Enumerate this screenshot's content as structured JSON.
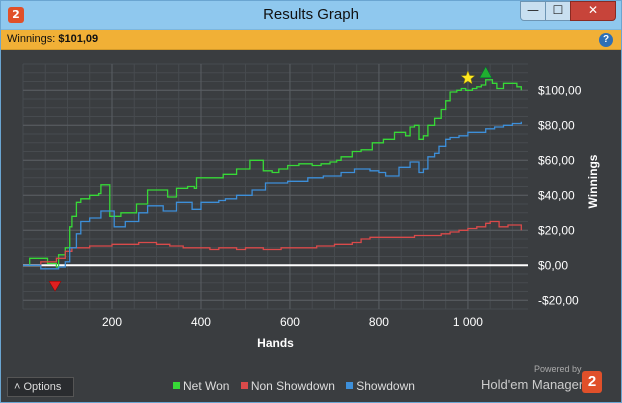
{
  "window": {
    "title": "Results Graph",
    "app_icon": "2",
    "minimize_icon": "—",
    "maximize_icon": "☐",
    "close_icon": "✕"
  },
  "winnings_bar": {
    "label": "Winnings:",
    "value": "$101,09",
    "help_icon": "?"
  },
  "footer": {
    "options_label": "Options",
    "options_icon": "˄",
    "powered_by": "Powered by",
    "brand": "Hold'em Manager",
    "brand_logo": "2"
  },
  "colors": {
    "net_won": "#37d937",
    "non_showdown": "#d94a4a",
    "showdown": "#3d8fd9",
    "zero_line": "#ffffff"
  },
  "chart_data": {
    "type": "line",
    "xlabel": "Hands",
    "ylabel": "Winnings",
    "xlim": [
      0,
      1135
    ],
    "ylim": [
      -25,
      115
    ],
    "x_ticks": [
      200,
      400,
      600,
      800,
      1000
    ],
    "x_tick_labels": [
      "200",
      "400",
      "600",
      "800",
      "1 000"
    ],
    "y_ticks": [
      -20,
      0,
      20,
      40,
      60,
      80,
      100
    ],
    "y_tick_labels": [
      "-$20,00",
      "$0,00",
      "$20,00",
      "$40,00",
      "$60,00",
      "$80,00",
      "$100,00"
    ],
    "grid": true,
    "legend_position": "bottom",
    "series": [
      {
        "name": "Net Won",
        "points": [
          [
            0,
            0
          ],
          [
            15,
            4
          ],
          [
            35,
            4
          ],
          [
            55,
            1
          ],
          [
            75,
            -1
          ],
          [
            80,
            6
          ],
          [
            95,
            10
          ],
          [
            105,
            22
          ],
          [
            110,
            28
          ],
          [
            120,
            36
          ],
          [
            130,
            38
          ],
          [
            145,
            38
          ],
          [
            150,
            40
          ],
          [
            160,
            40
          ],
          [
            170,
            41
          ],
          [
            175,
            46
          ],
          [
            190,
            46
          ],
          [
            195,
            28
          ],
          [
            215,
            28
          ],
          [
            220,
            30
          ],
          [
            250,
            30
          ],
          [
            255,
            35
          ],
          [
            275,
            35
          ],
          [
            280,
            43
          ],
          [
            320,
            43
          ],
          [
            325,
            39
          ],
          [
            340,
            39
          ],
          [
            345,
            44
          ],
          [
            370,
            45
          ],
          [
            385,
            44
          ],
          [
            390,
            50
          ],
          [
            440,
            50
          ],
          [
            450,
            52
          ],
          [
            470,
            52
          ],
          [
            480,
            55
          ],
          [
            500,
            55
          ],
          [
            510,
            60
          ],
          [
            530,
            60
          ],
          [
            540,
            54
          ],
          [
            560,
            53
          ],
          [
            575,
            55
          ],
          [
            590,
            55
          ],
          [
            595,
            57
          ],
          [
            620,
            58
          ],
          [
            640,
            58
          ],
          [
            650,
            57
          ],
          [
            670,
            58
          ],
          [
            690,
            59
          ],
          [
            705,
            60
          ],
          [
            715,
            62
          ],
          [
            730,
            62
          ],
          [
            740,
            65
          ],
          [
            760,
            66
          ],
          [
            775,
            66
          ],
          [
            785,
            70
          ],
          [
            800,
            70
          ],
          [
            810,
            72
          ],
          [
            825,
            72
          ],
          [
            835,
            76
          ],
          [
            850,
            76
          ],
          [
            860,
            74
          ],
          [
            870,
            79
          ],
          [
            880,
            80
          ],
          [
            890,
            72
          ],
          [
            900,
            74
          ],
          [
            910,
            80
          ],
          [
            925,
            84
          ],
          [
            940,
            89
          ],
          [
            950,
            94
          ],
          [
            960,
            99
          ],
          [
            975,
            100
          ],
          [
            985,
            101
          ],
          [
            995,
            100
          ],
          [
            1010,
            101
          ],
          [
            1020,
            102
          ],
          [
            1030,
            103
          ],
          [
            1040,
            106
          ],
          [
            1055,
            104
          ],
          [
            1065,
            101
          ],
          [
            1080,
            104
          ],
          [
            1100,
            104
          ],
          [
            1110,
            102
          ],
          [
            1120,
            100
          ]
        ]
      },
      {
        "name": "Non Showdown",
        "points": [
          [
            0,
            0
          ],
          [
            40,
            2
          ],
          [
            60,
            2
          ],
          [
            75,
            4
          ],
          [
            95,
            8
          ],
          [
            110,
            10
          ],
          [
            130,
            10
          ],
          [
            150,
            11
          ],
          [
            200,
            12
          ],
          [
            240,
            12
          ],
          [
            260,
            13
          ],
          [
            300,
            12
          ],
          [
            330,
            11
          ],
          [
            360,
            10
          ],
          [
            400,
            10
          ],
          [
            420,
            9
          ],
          [
            440,
            10
          ],
          [
            480,
            9
          ],
          [
            500,
            10
          ],
          [
            540,
            9
          ],
          [
            580,
            10
          ],
          [
            620,
            10
          ],
          [
            660,
            11
          ],
          [
            700,
            12
          ],
          [
            740,
            13
          ],
          [
            760,
            15
          ],
          [
            780,
            16
          ],
          [
            800,
            16
          ],
          [
            830,
            16
          ],
          [
            860,
            16
          ],
          [
            880,
            17
          ],
          [
            900,
            17
          ],
          [
            920,
            17
          ],
          [
            940,
            18
          ],
          [
            960,
            19
          ],
          [
            980,
            20
          ],
          [
            1000,
            21
          ],
          [
            1020,
            22
          ],
          [
            1040,
            24
          ],
          [
            1050,
            25
          ],
          [
            1070,
            22
          ],
          [
            1090,
            23
          ],
          [
            1105,
            23
          ],
          [
            1120,
            20
          ]
        ]
      },
      {
        "name": "Showdown",
        "points": [
          [
            0,
            0
          ],
          [
            40,
            -2
          ],
          [
            70,
            -2
          ],
          [
            80,
            -1
          ],
          [
            95,
            2
          ],
          [
            105,
            10
          ],
          [
            120,
            18
          ],
          [
            130,
            25
          ],
          [
            150,
            27
          ],
          [
            170,
            27
          ],
          [
            175,
            31
          ],
          [
            200,
            31
          ],
          [
            205,
            22
          ],
          [
            225,
            22
          ],
          [
            230,
            25
          ],
          [
            255,
            25
          ],
          [
            260,
            30
          ],
          [
            275,
            30
          ],
          [
            280,
            34
          ],
          [
            310,
            34
          ],
          [
            315,
            31
          ],
          [
            340,
            31
          ],
          [
            345,
            36
          ],
          [
            375,
            36
          ],
          [
            380,
            32
          ],
          [
            395,
            32
          ],
          [
            400,
            36
          ],
          [
            430,
            36
          ],
          [
            440,
            37
          ],
          [
            455,
            38
          ],
          [
            470,
            38
          ],
          [
            480,
            40
          ],
          [
            500,
            40
          ],
          [
            515,
            43
          ],
          [
            540,
            43
          ],
          [
            545,
            47
          ],
          [
            580,
            47
          ],
          [
            595,
            48
          ],
          [
            620,
            48
          ],
          [
            640,
            50
          ],
          [
            660,
            50
          ],
          [
            675,
            51
          ],
          [
            700,
            51
          ],
          [
            715,
            53
          ],
          [
            730,
            53
          ],
          [
            745,
            55
          ],
          [
            760,
            55
          ],
          [
            780,
            54
          ],
          [
            800,
            53
          ],
          [
            815,
            51
          ],
          [
            830,
            51
          ],
          [
            845,
            56
          ],
          [
            860,
            56
          ],
          [
            870,
            59
          ],
          [
            880,
            59
          ],
          [
            890,
            53
          ],
          [
            900,
            55
          ],
          [
            910,
            62
          ],
          [
            925,
            64
          ],
          [
            935,
            68
          ],
          [
            950,
            72
          ],
          [
            960,
            73
          ],
          [
            980,
            74
          ],
          [
            1000,
            76
          ],
          [
            1020,
            76
          ],
          [
            1040,
            78
          ],
          [
            1060,
            79
          ],
          [
            1080,
            80
          ],
          [
            1100,
            81
          ],
          [
            1120,
            82
          ]
        ]
      }
    ],
    "markers": [
      {
        "type": "min",
        "shape": "down-triangle",
        "color": "#e02020",
        "x": 72,
        "y": -12
      },
      {
        "type": "max",
        "shape": "up-triangle",
        "color": "#20b030",
        "x": 1040,
        "y": 110
      },
      {
        "type": "star",
        "shape": "star",
        "color": "#ffe820",
        "x": 1000,
        "y": 107
      }
    ]
  }
}
